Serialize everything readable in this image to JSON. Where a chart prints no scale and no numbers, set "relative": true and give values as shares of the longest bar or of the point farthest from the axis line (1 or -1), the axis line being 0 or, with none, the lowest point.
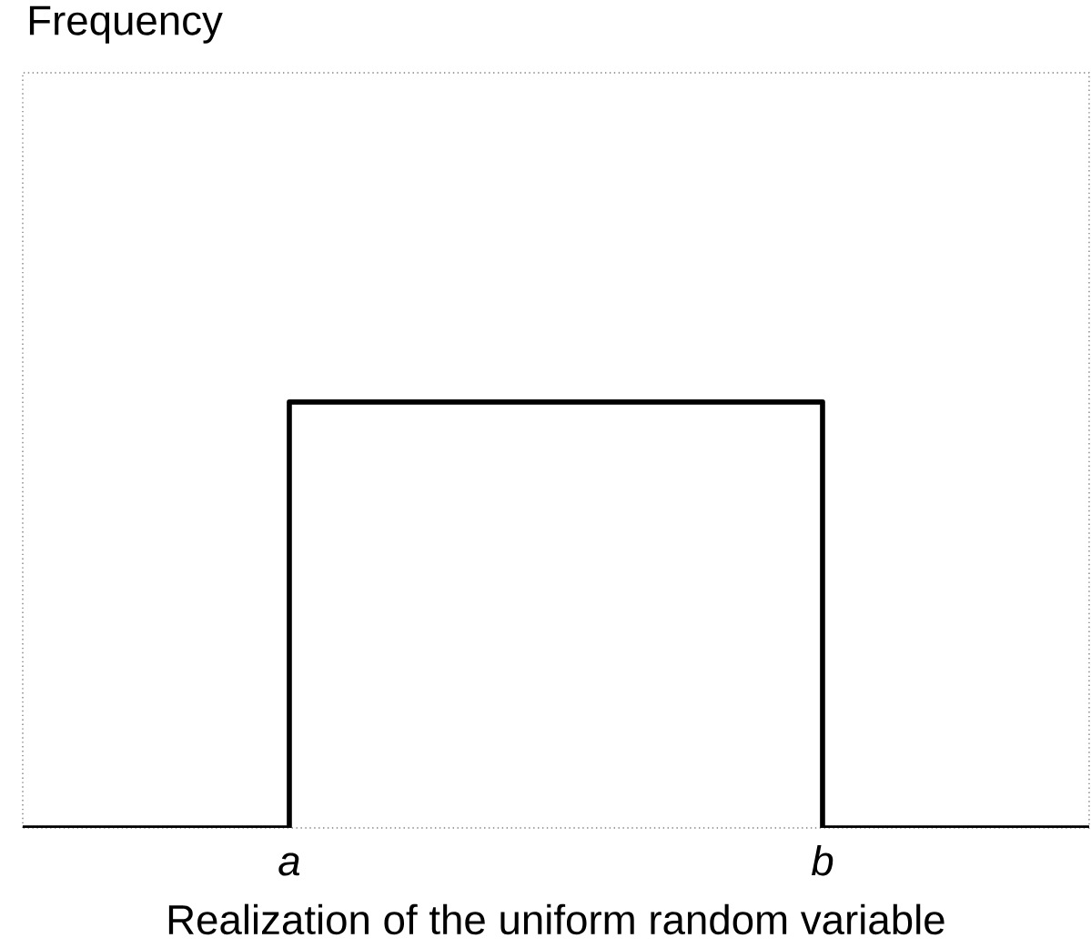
{
  "chart_data": {
    "type": "step",
    "relative": true,
    "xlabel": "Realization of the uniform random variable",
    "annotations": [
      "Frequency"
    ],
    "categories": [
      null,
      "a",
      null,
      "b",
      null
    ],
    "values": [
      0,
      1,
      1,
      0,
      0
    ],
    "color": "#000000"
  }
}
